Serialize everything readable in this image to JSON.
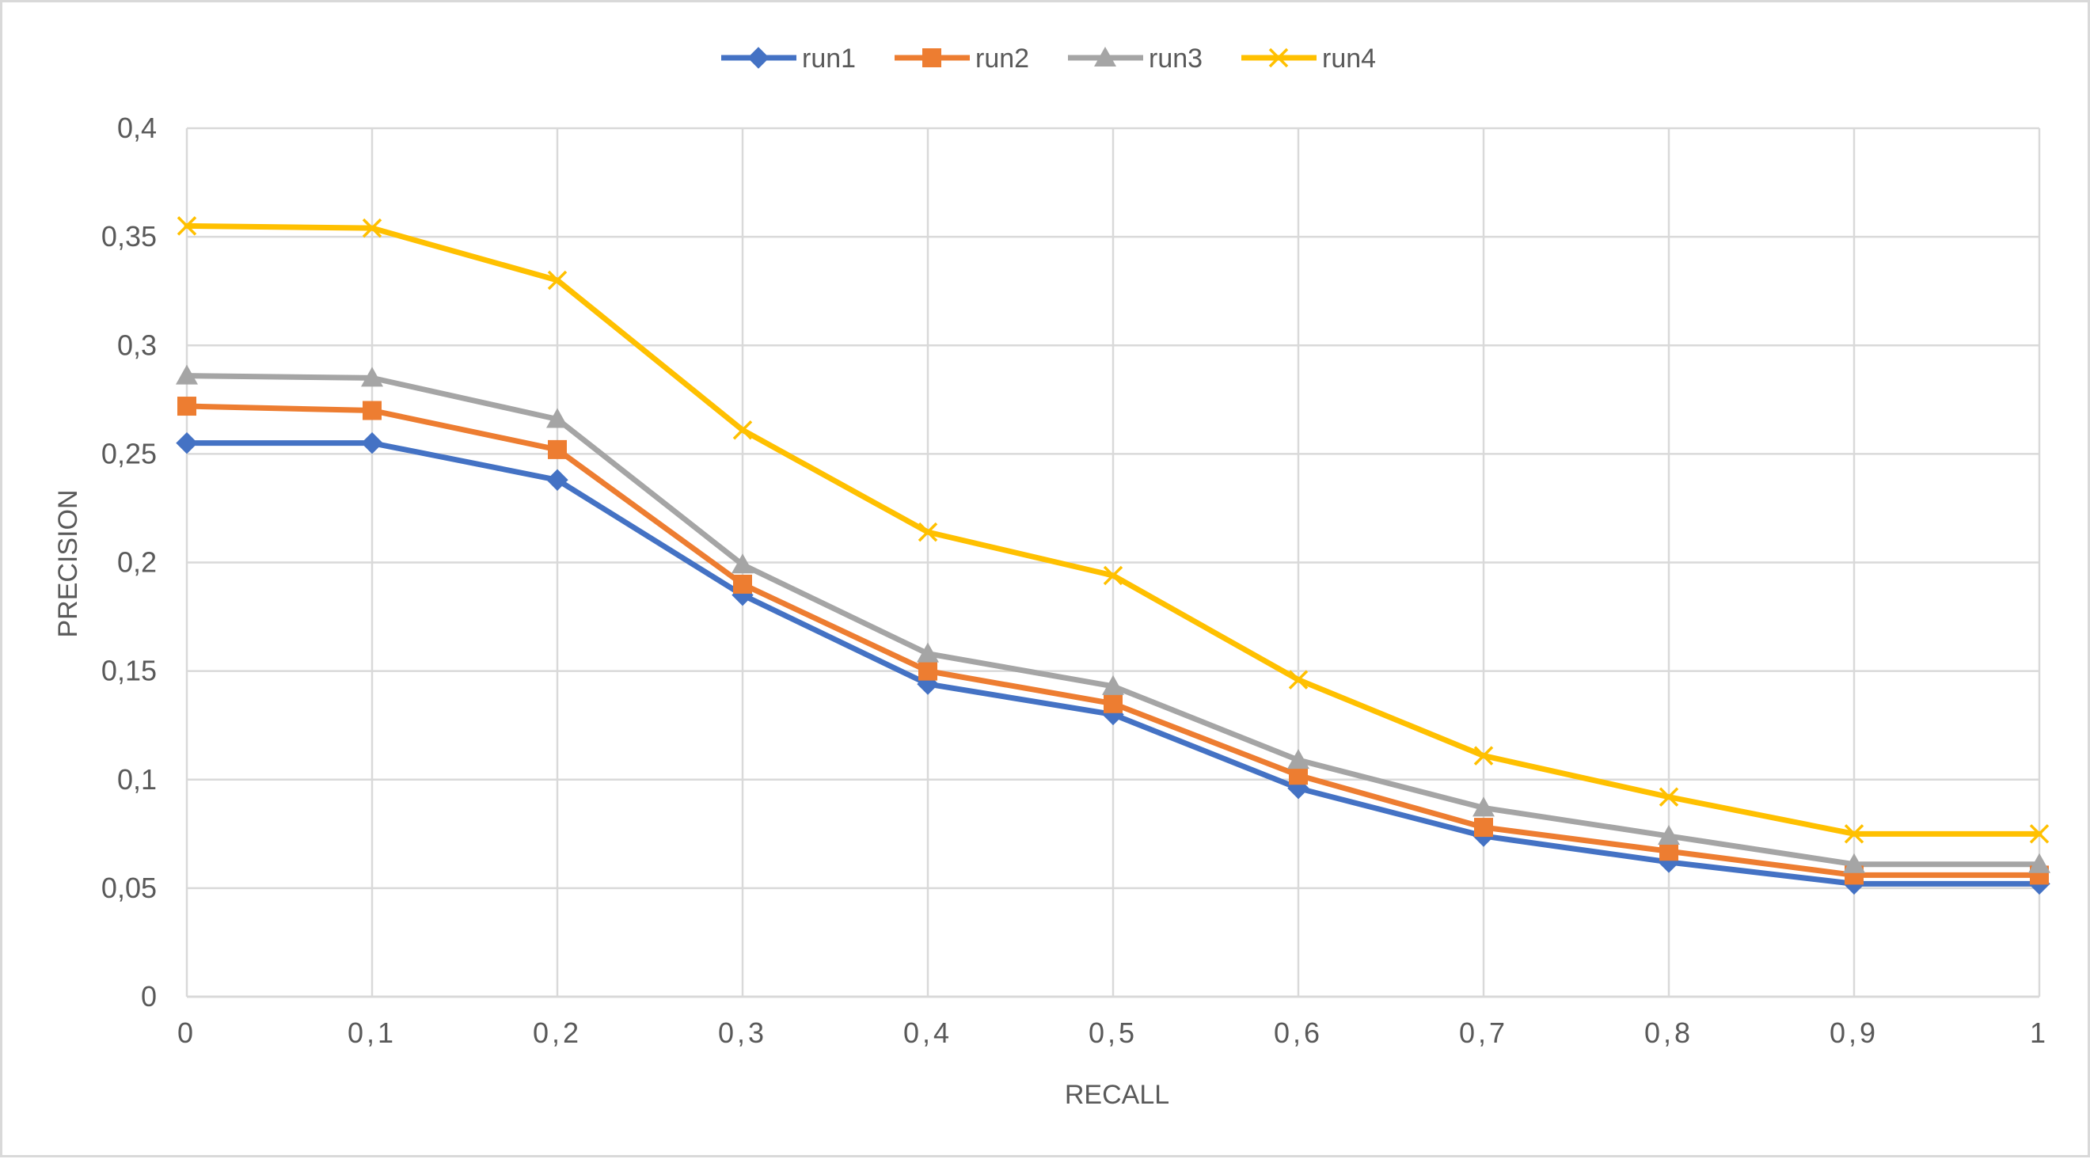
{
  "chart_data": {
    "type": "line",
    "title": "",
    "xlabel": "RECALL",
    "ylabel": "PRECISION",
    "x": [
      0,
      0.1,
      0.2,
      0.3,
      0.4,
      0.5,
      0.6,
      0.7,
      0.8,
      0.9,
      1
    ],
    "x_tick_labels": [
      "0",
      "0,1",
      "0,2",
      "0,3",
      "0,4",
      "0,5",
      "0,6",
      "0,7",
      "0,8",
      "0,9",
      "1"
    ],
    "ylim": [
      0,
      0.4
    ],
    "y_ticks": [
      0,
      0.05,
      0.1,
      0.15,
      0.2,
      0.25,
      0.3,
      0.35,
      0.4
    ],
    "y_tick_labels": [
      "0",
      "0,05",
      "0,1",
      "0,15",
      "0,2",
      "0,25",
      "0,3",
      "0,35",
      "0,4"
    ],
    "grid": true,
    "legend_position": "top",
    "series": [
      {
        "name": "run1",
        "color": "#4472c4",
        "marker": "diamond",
        "values": [
          0.255,
          0.255,
          0.238,
          0.185,
          0.144,
          0.13,
          0.096,
          0.074,
          0.062,
          0.052,
          0.052
        ]
      },
      {
        "name": "run2",
        "color": "#ed7d31",
        "marker": "square",
        "values": [
          0.272,
          0.27,
          0.252,
          0.19,
          0.15,
          0.135,
          0.102,
          0.078,
          0.067,
          0.056,
          0.056
        ]
      },
      {
        "name": "run3",
        "color": "#a5a5a5",
        "marker": "triangle",
        "values": [
          0.286,
          0.285,
          0.266,
          0.199,
          0.158,
          0.143,
          0.109,
          0.087,
          0.074,
          0.061,
          0.061
        ]
      },
      {
        "name": "run4",
        "color": "#ffc000",
        "marker": "x",
        "values": [
          0.355,
          0.354,
          0.33,
          0.261,
          0.214,
          0.194,
          0.146,
          0.111,
          0.092,
          0.075,
          0.075
        ]
      }
    ]
  }
}
